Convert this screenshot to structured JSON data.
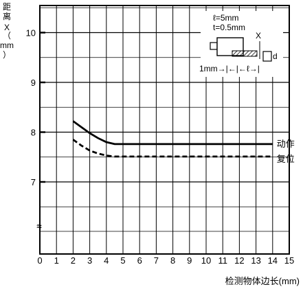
{
  "chart_data": {
    "type": "line",
    "xlabel": "检测物体边长(mm)",
    "ylabel_chars": [
      "距",
      "离",
      "X",
      "（",
      "mm",
      "）"
    ],
    "xlim": [
      0,
      15
    ],
    "ylim_visible": [
      6,
      10.5
    ],
    "axis_break_symbol": "≈",
    "x_ticks": [
      "0",
      "1",
      "2",
      "3",
      "4",
      "5",
      "6",
      "7",
      "8",
      "9",
      "10",
      "11",
      "12",
      "13",
      "14",
      "15"
    ],
    "y_ticks": [
      {
        "value": 7,
        "label": "7"
      },
      {
        "value": 8,
        "label": "8"
      },
      {
        "value": 9,
        "label": "9"
      },
      {
        "value": 10,
        "label": "10"
      }
    ],
    "grid": true,
    "series": [
      {
        "name": "动作",
        "style": "solid",
        "color": "#000000",
        "x": [
          2,
          2.5,
          3,
          3.5,
          4,
          4.5,
          5,
          6,
          7,
          8,
          9,
          10,
          11,
          12,
          13,
          14
        ],
        "y": [
          8.22,
          8.1,
          7.98,
          7.88,
          7.8,
          7.76,
          7.76,
          7.76,
          7.76,
          7.76,
          7.76,
          7.76,
          7.76,
          7.76,
          7.76,
          7.76
        ]
      },
      {
        "name": "复位",
        "style": "dashed",
        "color": "#000000",
        "x": [
          2,
          2.5,
          3,
          3.5,
          4,
          4.5,
          5,
          6,
          7,
          8,
          9,
          10,
          11,
          12,
          13,
          14
        ],
        "y": [
          7.85,
          7.73,
          7.63,
          7.57,
          7.53,
          7.51,
          7.51,
          7.51,
          7.51,
          7.51,
          7.51,
          7.51,
          7.51,
          7.51,
          7.51,
          7.51
        ]
      }
    ],
    "inset": {
      "line1": "ℓ=5mm",
      "line2": "t=0.5mm",
      "label_x": "X",
      "label_d": "d",
      "bottom": "1mm→|←|←ℓ→|"
    }
  }
}
